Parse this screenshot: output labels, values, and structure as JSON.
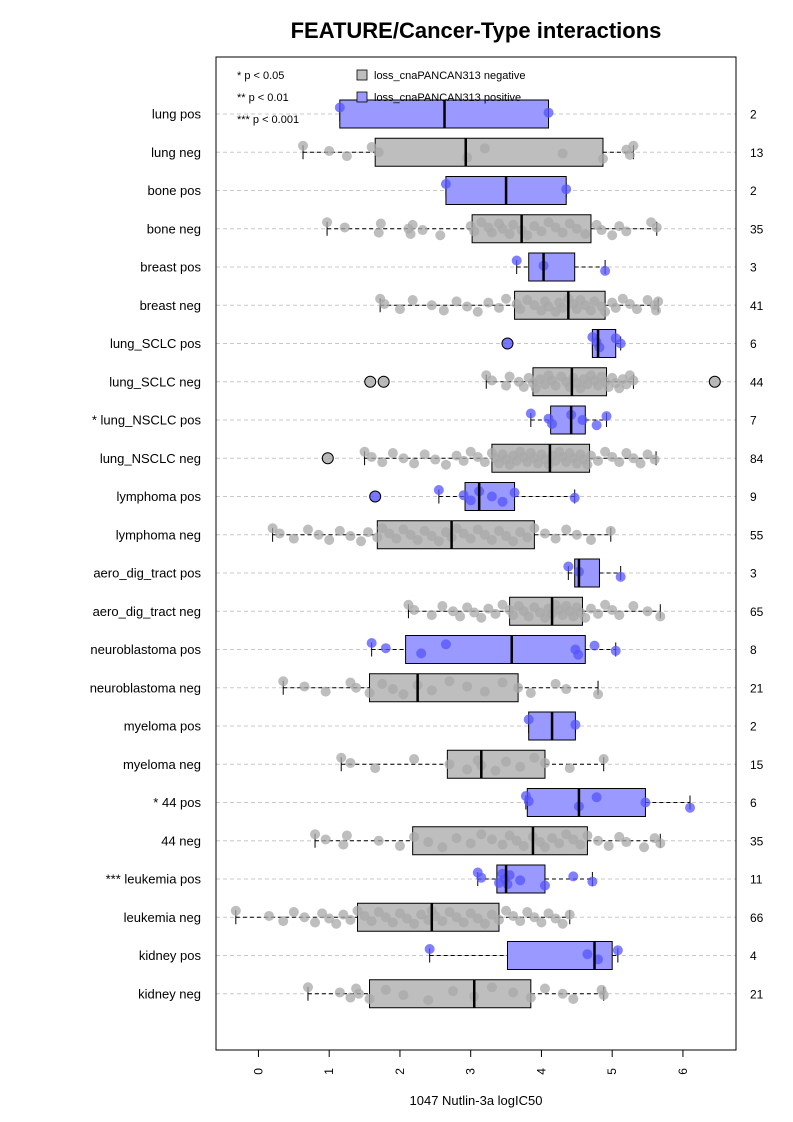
{
  "chart_data": {
    "type": "boxplot",
    "title": "FEATURE/Cancer-Type interactions",
    "xlabel": "1047 Nutlin-3a logIC50",
    "ylabel": "",
    "xlim": [
      -0.6,
      6.75
    ],
    "xticks": [
      0,
      1,
      2,
      3,
      4,
      5,
      6
    ],
    "grid": "horizontal dashed",
    "legend_position": "top",
    "significance_notes": [
      "* p < 0.05",
      "** p < 0.01",
      "*** p < 0.001"
    ],
    "series": [
      {
        "name": "loss_cnaPANCAN313 negative",
        "color": "#bebebe"
      },
      {
        "name": "loss_cnaPANCAN313 positive",
        "color": "#9999ff"
      }
    ],
    "colors": {
      "negative_fill": "#bebebe",
      "positive_fill": "#9999ff",
      "negative_point": "#a8a8a8",
      "positive_point": "#5555ff"
    },
    "groups": [
      {
        "label": "lung pos",
        "n": "2",
        "positive": true,
        "q1": 1.15,
        "median": 2.63,
        "q3": 4.1,
        "wlo": 1.15,
        "whi": 4.1,
        "points": [
          1.15,
          4.1
        ],
        "outliers": []
      },
      {
        "label": "lung neg",
        "n": "13",
        "positive": false,
        "q1": 1.65,
        "median": 2.93,
        "q3": 4.87,
        "wlo": 0.63,
        "whi": 5.3,
        "points": [
          0.63,
          1.0,
          1.25,
          1.6,
          1.7,
          2.95,
          3.2,
          4.3,
          4.87,
          5.2,
          5.25,
          5.3
        ],
        "outliers": []
      },
      {
        "label": "bone pos",
        "n": "2",
        "positive": true,
        "q1": 2.65,
        "median": 3.5,
        "q3": 4.35,
        "wlo": 2.65,
        "whi": 4.35,
        "points": [
          2.65,
          4.35
        ],
        "outliers": []
      },
      {
        "label": "bone neg",
        "n": "35",
        "positive": false,
        "q1": 3.02,
        "median": 3.72,
        "q3": 4.7,
        "wlo": 0.97,
        "whi": 5.63,
        "points": [
          0.97,
          1.22,
          1.7,
          1.73,
          2.12,
          2.15,
          2.18,
          2.32,
          2.57,
          3.0,
          3.05,
          3.15,
          3.25,
          3.3,
          3.4,
          3.45,
          3.55,
          3.6,
          3.72,
          3.8,
          3.9,
          4.0,
          4.1,
          4.2,
          4.3,
          4.4,
          4.5,
          4.62,
          4.78,
          4.85,
          5.0,
          5.1,
          5.2,
          5.55,
          5.63
        ],
        "outliers": []
      },
      {
        "label": "breast pos",
        "n": "3",
        "positive": true,
        "q1": 3.82,
        "median": 4.03,
        "q3": 4.47,
        "wlo": 3.65,
        "whi": 4.9,
        "points": [
          3.65,
          4.03,
          4.9
        ],
        "outliers": []
      },
      {
        "label": "breast neg",
        "n": "41",
        "positive": false,
        "q1": 3.62,
        "median": 4.38,
        "q3": 4.9,
        "wlo": 1.72,
        "whi": 5.65,
        "points": [
          1.72,
          1.78,
          2.0,
          2.18,
          2.45,
          2.62,
          2.8,
          2.95,
          3.1,
          3.25,
          3.4,
          3.5,
          3.65,
          3.7,
          3.8,
          3.9,
          4.0,
          4.05,
          4.1,
          4.2,
          4.25,
          4.3,
          4.38,
          4.45,
          4.5,
          4.55,
          4.62,
          4.7,
          4.75,
          4.85,
          4.9,
          5.0,
          5.05,
          5.15,
          5.25,
          5.35,
          5.5,
          5.6,
          5.62,
          5.65
        ],
        "outliers": []
      },
      {
        "label": "lung_SCLC pos",
        "n": "6",
        "positive": true,
        "q1": 4.72,
        "median": 4.8,
        "q3": 5.05,
        "wlo": 4.72,
        "whi": 5.12,
        "points": [
          4.72,
          4.78,
          4.82,
          5.05,
          5.12
        ],
        "outliers": [
          3.52
        ]
      },
      {
        "label": "lung_SCLC neg",
        "n": "44",
        "positive": false,
        "q1": 3.88,
        "median": 4.43,
        "q3": 4.92,
        "wlo": 3.22,
        "whi": 5.3,
        "points": [
          3.22,
          3.3,
          3.5,
          3.55,
          3.68,
          3.75,
          3.82,
          3.88,
          3.92,
          3.98,
          4.05,
          4.1,
          4.15,
          4.2,
          4.28,
          4.35,
          4.4,
          4.45,
          4.5,
          4.55,
          4.6,
          4.65,
          4.7,
          4.75,
          4.8,
          4.85,
          4.9,
          4.95,
          5.0,
          5.05,
          5.1,
          5.15,
          5.2,
          5.25,
          5.3
        ],
        "outliers": [
          1.58,
          1.77,
          6.45
        ]
      },
      {
        "label": "* lung_NSCLC pos",
        "n": "7",
        "positive": true,
        "q1": 4.13,
        "median": 4.42,
        "q3": 4.62,
        "wlo": 3.85,
        "whi": 4.92,
        "points": [
          3.85,
          4.1,
          4.15,
          4.42,
          4.58,
          4.78,
          4.92
        ],
        "outliers": []
      },
      {
        "label": "lung_NSCLC neg",
        "n": "84",
        "positive": false,
        "q1": 3.3,
        "median": 4.12,
        "q3": 4.68,
        "wlo": 1.5,
        "whi": 5.62,
        "points": [
          1.5,
          1.6,
          1.75,
          1.9,
          2.05,
          2.2,
          2.35,
          2.5,
          2.65,
          2.8,
          2.9,
          3.0,
          3.1,
          3.2,
          3.3,
          3.35,
          3.4,
          3.45,
          3.5,
          3.55,
          3.6,
          3.65,
          3.7,
          3.75,
          3.8,
          3.85,
          3.9,
          3.95,
          4.0,
          4.05,
          4.1,
          4.15,
          4.2,
          4.25,
          4.3,
          4.35,
          4.4,
          4.45,
          4.5,
          4.55,
          4.6,
          4.65,
          4.7,
          4.8,
          4.9,
          5.0,
          5.1,
          5.2,
          5.3,
          5.4,
          5.5,
          5.6
        ],
        "outliers": [
          0.98
        ]
      },
      {
        "label": "lymphoma pos",
        "n": "9",
        "positive": true,
        "q1": 2.92,
        "median": 3.12,
        "q3": 3.62,
        "wlo": 2.55,
        "whi": 4.47,
        "points": [
          2.55,
          2.9,
          3.0,
          3.12,
          3.3,
          3.45,
          3.62,
          4.47
        ],
        "outliers": [
          1.65
        ]
      },
      {
        "label": "lymphoma neg",
        "n": "55",
        "positive": false,
        "q1": 1.68,
        "median": 2.73,
        "q3": 3.9,
        "wlo": 0.2,
        "whi": 4.98,
        "points": [
          0.2,
          0.3,
          0.5,
          0.7,
          0.85,
          1.0,
          1.15,
          1.3,
          1.45,
          1.55,
          1.68,
          1.75,
          1.85,
          1.95,
          2.05,
          2.15,
          2.25,
          2.35,
          2.45,
          2.55,
          2.65,
          2.73,
          2.8,
          2.9,
          3.0,
          3.1,
          3.2,
          3.3,
          3.4,
          3.5,
          3.6,
          3.7,
          3.8,
          3.9,
          4.05,
          4.2,
          4.35,
          4.5,
          4.7,
          4.98
        ],
        "outliers": []
      },
      {
        "label": "aero_dig_tract pos",
        "n": "3",
        "positive": true,
        "q1": 4.47,
        "median": 4.53,
        "q3": 4.82,
        "wlo": 4.38,
        "whi": 5.12,
        "points": [
          4.38,
          4.53,
          5.12
        ],
        "outliers": []
      },
      {
        "label": "aero_dig_tract neg",
        "n": "65",
        "positive": false,
        "q1": 3.55,
        "median": 4.15,
        "q3": 4.58,
        "wlo": 2.12,
        "whi": 5.68,
        "points": [
          2.12,
          2.2,
          2.45,
          2.6,
          2.75,
          2.85,
          2.95,
          3.05,
          3.15,
          3.25,
          3.35,
          3.45,
          3.55,
          3.6,
          3.68,
          3.75,
          3.82,
          3.9,
          3.98,
          4.05,
          4.1,
          4.15,
          4.2,
          4.25,
          4.3,
          4.35,
          4.4,
          4.45,
          4.5,
          4.55,
          4.62,
          4.7,
          4.8,
          4.9,
          5.0,
          5.1,
          5.3,
          5.5,
          5.68
        ],
        "outliers": []
      },
      {
        "label": "neuroblastoma pos",
        "n": "8",
        "positive": true,
        "q1": 2.08,
        "median": 3.58,
        "q3": 4.62,
        "wlo": 1.6,
        "whi": 5.05,
        "points": [
          1.6,
          1.8,
          2.3,
          2.65,
          4.48,
          4.52,
          4.75,
          5.05
        ],
        "outliers": []
      },
      {
        "label": "neuroblastoma neg",
        "n": "21",
        "positive": false,
        "q1": 1.57,
        "median": 2.25,
        "q3": 3.67,
        "wlo": 0.35,
        "whi": 4.8,
        "points": [
          0.35,
          0.65,
          0.95,
          1.3,
          1.38,
          1.57,
          1.75,
          1.9,
          2.05,
          2.25,
          2.45,
          2.7,
          2.95,
          3.2,
          3.45,
          3.67,
          3.85,
          4.2,
          4.35,
          4.8
        ],
        "outliers": []
      },
      {
        "label": "myeloma pos",
        "n": "2",
        "positive": true,
        "q1": 3.82,
        "median": 4.15,
        "q3": 4.48,
        "wlo": 3.82,
        "whi": 4.48,
        "points": [
          3.82,
          4.48
        ],
        "outliers": []
      },
      {
        "label": "myeloma neg",
        "n": "15",
        "positive": false,
        "q1": 2.67,
        "median": 3.15,
        "q3": 4.05,
        "wlo": 1.17,
        "whi": 4.88,
        "points": [
          1.17,
          1.3,
          1.65,
          2.2,
          2.7,
          2.95,
          3.1,
          3.15,
          3.35,
          3.5,
          3.7,
          3.9,
          4.05,
          4.4,
          4.88
        ],
        "outliers": []
      },
      {
        "label": "* 44 pos",
        "n": "6",
        "positive": true,
        "q1": 3.8,
        "median": 4.53,
        "q3": 5.47,
        "wlo": 3.78,
        "whi": 6.1,
        "points": [
          3.78,
          3.82,
          4.53,
          4.78,
          5.47,
          6.1
        ],
        "outliers": []
      },
      {
        "label": "44 neg",
        "n": "35",
        "positive": false,
        "q1": 2.18,
        "median": 3.88,
        "q3": 4.65,
        "wlo": 0.8,
        "whi": 5.68,
        "points": [
          0.8,
          0.95,
          1.2,
          1.25,
          1.7,
          2.0,
          2.2,
          2.4,
          2.6,
          2.8,
          3.0,
          3.15,
          3.3,
          3.45,
          3.55,
          3.65,
          3.75,
          3.88,
          3.98,
          4.05,
          4.15,
          4.25,
          4.35,
          4.45,
          4.55,
          4.65,
          4.8,
          4.95,
          5.1,
          5.2,
          5.45,
          5.6,
          5.68
        ],
        "outliers": []
      },
      {
        "label": "*** leukemia pos",
        "n": "11",
        "positive": true,
        "q1": 3.37,
        "median": 3.5,
        "q3": 4.05,
        "wlo": 3.1,
        "whi": 4.72,
        "points": [
          3.1,
          3.15,
          3.4,
          3.45,
          3.48,
          3.52,
          3.55,
          3.7,
          4.05,
          4.45,
          4.72
        ],
        "outliers": []
      },
      {
        "label": "leukemia neg",
        "n": "66",
        "positive": false,
        "q1": 1.4,
        "median": 2.45,
        "q3": 3.4,
        "wlo": -0.32,
        "whi": 4.4,
        "points": [
          -0.32,
          0.15,
          0.35,
          0.5,
          0.65,
          0.8,
          0.9,
          1.0,
          1.1,
          1.2,
          1.3,
          1.4,
          1.5,
          1.6,
          1.7,
          1.8,
          1.9,
          2.0,
          2.1,
          2.2,
          2.3,
          2.4,
          2.45,
          2.5,
          2.6,
          2.7,
          2.8,
          2.9,
          3.0,
          3.1,
          3.2,
          3.3,
          3.4,
          3.5,
          3.6,
          3.7,
          3.8,
          3.9,
          4.0,
          4.1,
          4.2,
          4.3,
          4.4
        ],
        "outliers": []
      },
      {
        "label": "kidney pos",
        "n": "4",
        "positive": true,
        "q1": 3.52,
        "median": 4.75,
        "q3": 5.0,
        "wlo": 2.42,
        "whi": 5.08,
        "points": [
          2.42,
          4.65,
          4.8,
          5.08
        ],
        "outliers": []
      },
      {
        "label": "kidney neg",
        "n": "21",
        "positive": false,
        "q1": 1.57,
        "median": 3.05,
        "q3": 3.85,
        "wlo": 0.7,
        "whi": 4.88,
        "points": [
          0.7,
          1.15,
          1.3,
          1.38,
          1.42,
          1.57,
          1.8,
          2.05,
          2.4,
          2.75,
          3.05,
          3.3,
          3.6,
          3.85,
          4.05,
          4.3,
          4.45,
          4.85,
          4.88
        ],
        "outliers": []
      }
    ]
  }
}
